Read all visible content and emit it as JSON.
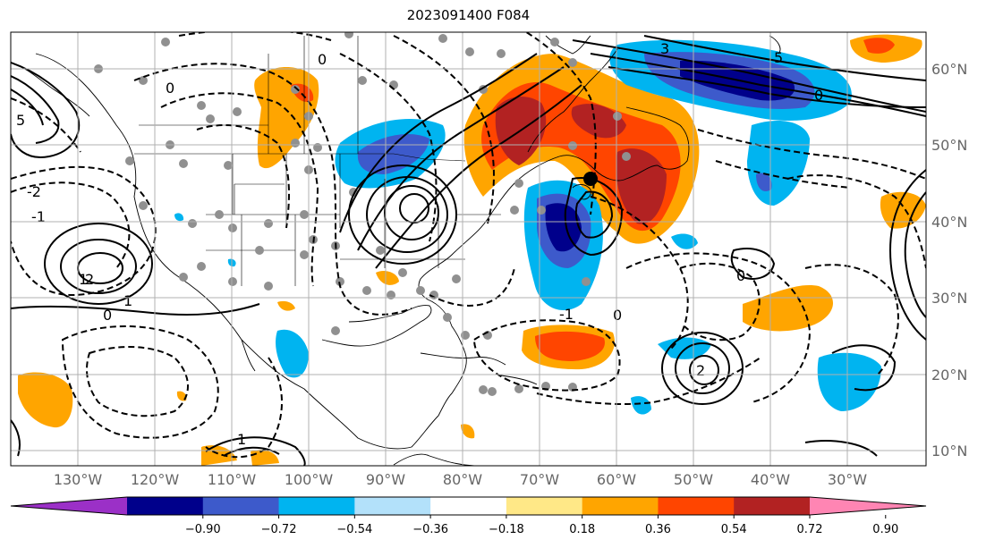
{
  "title": "2023091400 F084",
  "map": {
    "lon_ticks": [
      "130°W",
      "120°W",
      "110°W",
      "100°W",
      "90°W",
      "80°W",
      "70°W",
      "60°W",
      "50°W",
      "40°W",
      "30°W"
    ],
    "lat_ticks": [
      "60°N",
      "50°N",
      "40°N",
      "30°N",
      "20°N",
      "10°N"
    ],
    "contour_labels": [
      "0",
      "0",
      "1",
      "2",
      "-2",
      "5",
      "3",
      "5",
      "0",
      "-1",
      "0",
      "1",
      "0",
      "2",
      "1",
      "-1",
      "0"
    ]
  },
  "colorbar": {
    "ticks": [
      "−0.90",
      "−0.72",
      "−0.54",
      "−0.36",
      "−0.18",
      "0.18",
      "0.36",
      "0.54",
      "0.72",
      "0.90"
    ],
    "colors": [
      "#9b30c7",
      "#00008b",
      "#3d5acb",
      "#00b4f0",
      "#b3e1fa",
      "#ffffff",
      "#ffe887",
      "#ffa500",
      "#ff4500",
      "#b22222",
      "#ff85b3"
    ]
  },
  "colors": {
    "land_border": "#000000",
    "grid": "#b0b0b0",
    "dots": "#909090"
  }
}
